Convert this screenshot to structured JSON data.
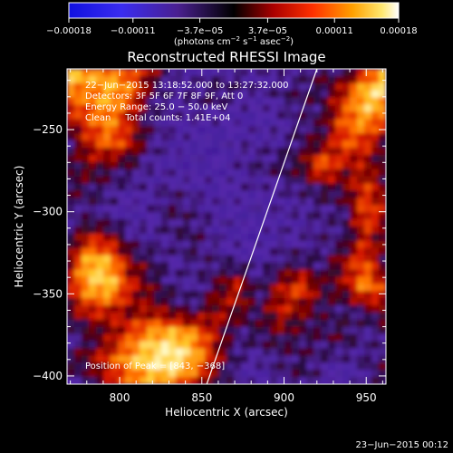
{
  "chart_data": {
    "type": "heatmap",
    "title": "Reconstructed RHESSI Image",
    "xlabel": "Heliocentric X (arcsec)",
    "ylabel": "Heliocentric Y (arcsec)",
    "xlim": [
      768,
      962
    ],
    "ylim": [
      -405,
      -213
    ],
    "x_ticks": [
      800,
      850,
      900,
      950
    ],
    "x_tick_labels": [
      "800",
      "850",
      "900",
      "950"
    ],
    "y_ticks": [
      -250,
      -300,
      -350,
      -400
    ],
    "y_tick_labels": [
      "−250",
      "−300",
      "−350",
      "−400"
    ],
    "colorbar": {
      "ticks": [
        -0.00018,
        -0.00011,
        -3.7e-05,
        3.7e-05,
        0.00011,
        0.00018
      ],
      "tick_labels": [
        "−0.00018",
        "−0.00011",
        "−3.7e−05",
        "3.7e−05",
        "0.00011",
        "0.00018"
      ],
      "range": [
        -0.00018,
        0.00018
      ],
      "label_prefix": "(photons cm",
      "label_exp1": "−2",
      "label_mid": " s",
      "label_exp2": "−1",
      "label_mid2": " asec",
      "label_exp3": "−2",
      "label_suffix": ")"
    },
    "annotations": [
      "22−Jun−2015 13:18:52.000 to 13:27:32.000",
      "Detectors: 3F 5F 6F 7F 8F 9F, Att 0",
      "Energy Range: 25.0 − 50.0 keV",
      "Clean     Total counts: 1.41E+04"
    ],
    "peak_label": "Position of Peak = [843, −368]",
    "peak": [
      843,
      -368
    ],
    "limb_line": {
      "x": [
        853,
        920
      ],
      "y": [
        -405,
        -213
      ]
    },
    "intensity_grid_rows_top_to_bottom": [
      [
        0.9,
        0.85,
        0.8,
        0.7,
        0.55,
        0.3,
        0.25,
        0.3,
        0.35,
        0.3,
        0.3,
        0.3,
        0.45,
        0.35,
        0.6,
        0.85
      ],
      [
        0.8,
        0.75,
        0.85,
        0.75,
        0.4,
        0.3,
        0.35,
        0.4,
        0.35,
        0.3,
        0.35,
        0.4,
        0.4,
        0.6,
        0.9,
        0.95
      ],
      [
        0.55,
        0.7,
        0.8,
        0.55,
        0.35,
        0.3,
        0.3,
        0.3,
        0.25,
        0.25,
        0.3,
        0.35,
        0.4,
        0.7,
        0.85,
        0.7
      ],
      [
        0.35,
        0.6,
        0.75,
        0.6,
        0.35,
        0.3,
        0.25,
        0.2,
        0.3,
        0.3,
        0.3,
        0.4,
        0.45,
        0.7,
        0.65,
        0.45
      ],
      [
        0.4,
        0.5,
        0.45,
        0.4,
        0.3,
        0.25,
        0.25,
        0.25,
        0.3,
        0.35,
        0.4,
        0.45,
        0.75,
        0.55,
        0.55,
        0.4
      ],
      [
        0.45,
        0.4,
        0.35,
        0.3,
        0.3,
        0.35,
        0.3,
        0.25,
        0.3,
        0.3,
        0.3,
        0.35,
        0.4,
        0.45,
        0.65,
        0.5
      ],
      [
        0.3,
        0.35,
        0.3,
        0.25,
        0.3,
        0.4,
        0.35,
        0.3,
        0.25,
        0.25,
        0.3,
        0.3,
        0.35,
        0.35,
        0.7,
        0.55
      ],
      [
        0.35,
        0.6,
        0.55,
        0.35,
        0.3,
        0.35,
        0.4,
        0.3,
        0.25,
        0.25,
        0.3,
        0.3,
        0.35,
        0.35,
        0.6,
        0.45
      ],
      [
        0.5,
        0.9,
        0.85,
        0.5,
        0.4,
        0.3,
        0.35,
        0.35,
        0.35,
        0.3,
        0.35,
        0.4,
        0.35,
        0.55,
        0.7,
        0.4
      ],
      [
        0.55,
        0.85,
        0.9,
        0.6,
        0.45,
        0.35,
        0.3,
        0.45,
        0.6,
        0.35,
        0.55,
        0.7,
        0.45,
        0.5,
        0.8,
        0.6
      ],
      [
        0.45,
        0.6,
        0.6,
        0.5,
        0.55,
        0.45,
        0.4,
        0.55,
        0.5,
        0.4,
        0.6,
        0.5,
        0.4,
        0.35,
        0.4,
        0.55
      ],
      [
        0.3,
        0.4,
        0.5,
        0.7,
        0.85,
        0.9,
        0.8,
        0.55,
        0.35,
        0.4,
        0.45,
        0.4,
        0.4,
        0.45,
        0.3,
        0.35
      ],
      [
        0.4,
        0.5,
        0.65,
        0.85,
        0.95,
        1.0,
        0.85,
        0.55,
        0.35,
        0.3,
        0.35,
        0.4,
        0.35,
        0.3,
        0.35,
        0.4
      ],
      [
        0.35,
        0.35,
        0.55,
        0.7,
        0.85,
        0.8,
        0.6,
        0.4,
        0.3,
        0.25,
        0.35,
        0.4,
        0.3,
        0.2,
        0.3,
        0.45
      ]
    ]
  },
  "footer": {
    "date": "23−Jun−2015 00:12"
  }
}
